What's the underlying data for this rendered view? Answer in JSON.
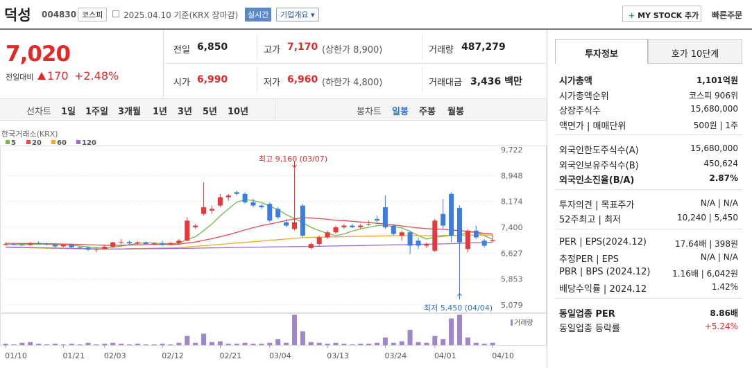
{
  "header": {
    "name": "덕성",
    "code": "004830",
    "market": "코스피",
    "date": "2025.04.10 기준(KRX 장마감)",
    "realtime": "실시간",
    "overview": "기업개요",
    "my_stock": "MY STOCK 추가",
    "quick_order": "빠른주문"
  },
  "price": {
    "current": "7,020",
    "change_label": "전일대비",
    "change": "170",
    "rate": "+2.48%"
  },
  "quotes": [
    {
      "label": "전일",
      "value": "6,850"
    },
    {
      "label": "고가",
      "value": "7,170",
      "note": "(상한가 8,900)"
    },
    {
      "label": "거래량",
      "value": "487,279"
    },
    {
      "label": "시가",
      "value": "6,990"
    },
    {
      "label": "저가",
      "value": "6,960",
      "note": "(하한가 4,800)"
    },
    {
      "label": "거래대금",
      "value": "3,436 백만"
    }
  ],
  "line_tabs": {
    "label": "선차트",
    "items": [
      "1일",
      "1주일",
      "3개월",
      "1년",
      "3년",
      "5년",
      "10년"
    ]
  },
  "candle_tabs": {
    "label": "봉차트",
    "items": [
      "일봉",
      "주봉",
      "월봉"
    ]
  },
  "chart": {
    "type": "candlestick",
    "source": "한국거래소(KRX)",
    "volume_label": "거래량",
    "categories": [
      "01/10",
      null,
      null,
      null,
      null,
      null,
      null,
      "01/21",
      null,
      null,
      null,
      null,
      "02/03",
      null,
      null,
      null,
      null,
      null,
      null,
      "02/12",
      null,
      null,
      null,
      null,
      null,
      null,
      "02/21",
      null,
      null,
      null,
      null,
      null,
      "03/04",
      null,
      null,
      null,
      null,
      null,
      null,
      "03/13",
      null,
      null,
      null,
      null,
      null,
      null,
      "03/24",
      null,
      null,
      null,
      null,
      null,
      "04/01",
      null,
      null,
      null,
      null,
      null,
      null,
      "04/10"
    ],
    "open": [
      6880,
      6900,
      6880,
      6870,
      6930,
      6900,
      6880,
      6830,
      6880,
      6800,
      6790,
      6730,
      6760,
      6820,
      6950,
      6960,
      6920,
      6950,
      6900,
      6920,
      6880,
      6930,
      7000,
      7400,
      7800,
      7900,
      8050,
      8300,
      8450,
      8400,
      8150,
      8050,
      8100,
      7950,
      7550,
      7350,
      8050,
      6780,
      6900,
      7100,
      7250,
      7400,
      7450,
      7400,
      7500,
      7650,
      8000,
      7450,
      7150,
      7250,
      7000,
      6850,
      6700,
      7800,
      8400,
      7980,
      6750,
      7300,
      7000,
      6990
    ],
    "high": [
      6950,
      6930,
      6920,
      6960,
      6980,
      6940,
      6920,
      6900,
      6900,
      6850,
      6830,
      6800,
      6850,
      6960,
      7050,
      7000,
      6980,
      6980,
      6950,
      7000,
      6960,
      7050,
      7700,
      7500,
      8750,
      8050,
      8400,
      8400,
      8500,
      8450,
      8250,
      8100,
      8150,
      8000,
      7650,
      9160,
      8100,
      6950,
      7150,
      7300,
      7450,
      7500,
      7500,
      7500,
      7600,
      7750,
      8350,
      7500,
      7300,
      7300,
      7100,
      6950,
      7650,
      8250,
      8450,
      8050,
      7350,
      7450,
      7050,
      7170
    ],
    "low": [
      6850,
      6860,
      6840,
      6850,
      6880,
      6860,
      6800,
      6800,
      6780,
      6760,
      6700,
      6650,
      6740,
      6800,
      6900,
      6880,
      6880,
      6880,
      6860,
      6850,
      6850,
      6900,
      6980,
      7350,
      7750,
      7800,
      8000,
      8200,
      8350,
      8100,
      8000,
      7950,
      7550,
      7650,
      7400,
      7300,
      7100,
      6740,
      6850,
      7050,
      7200,
      7350,
      7380,
      7350,
      7450,
      7550,
      7350,
      7150,
      7000,
      6600,
      6750,
      6780,
      6650,
      7350,
      6950,
      5450,
      6650,
      7050,
      6800,
      6960
    ],
    "close": [
      6900,
      6880,
      6870,
      6930,
      6900,
      6880,
      6830,
      6880,
      6800,
      6790,
      6730,
      6760,
      6820,
      6950,
      6960,
      6920,
      6950,
      6900,
      6920,
      6880,
      6930,
      7000,
      7600,
      7450,
      8000,
      7950,
      8300,
      8350,
      8400,
      8150,
      8050,
      8000,
      7600,
      7700,
      7450,
      7550,
      7150,
      6900,
      7100,
      7250,
      7400,
      7450,
      7400,
      7450,
      7500,
      7600,
      7400,
      7200,
      7250,
      6850,
      6850,
      6900,
      7600,
      7450,
      7150,
      6950,
      7300,
      7100,
      6850,
      7020
    ],
    "volume": [
      100000,
      50000,
      150000,
      200000,
      100000,
      50000,
      100000,
      50000,
      100000,
      50000,
      150000,
      50000,
      100000,
      150000,
      100000,
      50000,
      100000,
      50000,
      50000,
      100000,
      50000,
      150000,
      600000,
      150000,
      750000,
      200000,
      250000,
      100000,
      100000,
      150000,
      100000,
      100000,
      150000,
      400000,
      150000,
      2000000,
      900000,
      200000,
      150000,
      100000,
      150000,
      100000,
      50000,
      100000,
      100000,
      150000,
      500000,
      150000,
      250000,
      1000000,
      200000,
      150000,
      600000,
      400000,
      1750000,
      2000000,
      500000,
      150000,
      100000,
      150000
    ],
    "ma": [
      {
        "name": "5",
        "color": "#74b843",
        "values": [
          6880,
          6885,
          6885,
          6890,
          6895,
          6895,
          6880,
          6875,
          6860,
          6840,
          6810,
          6790,
          6780,
          6800,
          6840,
          6880,
          6920,
          6935,
          6930,
          6915,
          6910,
          6925,
          7030,
          7120,
          7300,
          7500,
          7740,
          7950,
          8150,
          8230,
          8200,
          8140,
          8030,
          7930,
          7780,
          7660,
          7540,
          7400,
          7300,
          7220,
          7150,
          7200,
          7290,
          7350,
          7400,
          7450,
          7460,
          7420,
          7380,
          7280,
          7150,
          7050,
          7100,
          7130,
          7150,
          7160,
          7260,
          7250,
          7150,
          7040
        ]
      },
      {
        "name": "20",
        "color": "#e8484a",
        "values": [
          6920,
          6920,
          6915,
          6915,
          6915,
          6910,
          6905,
          6900,
          6895,
          6890,
          6880,
          6870,
          6865,
          6860,
          6865,
          6870,
          6875,
          6880,
          6885,
          6885,
          6890,
          6895,
          6930,
          6960,
          7010,
          7060,
          7120,
          7180,
          7250,
          7320,
          7390,
          7450,
          7500,
          7550,
          7600,
          7650,
          7690,
          7680,
          7660,
          7640,
          7610,
          7600,
          7580,
          7560,
          7540,
          7520,
          7500,
          7470,
          7440,
          7410,
          7380,
          7360,
          7350,
          7340,
          7320,
          7300,
          7280,
          7250,
          7220,
          7200
        ]
      },
      {
        "name": "60",
        "color": "#f5a623",
        "values": [
          6800,
          6795,
          6790,
          6785,
          6780,
          6775,
          6770,
          6765,
          6760,
          6755,
          6750,
          6745,
          6745,
          6750,
          6755,
          6760,
          6765,
          6770,
          6775,
          6780,
          6785,
          6790,
          6810,
          6830,
          6850,
          6870,
          6890,
          6910,
          6930,
          6950,
          6970,
          6990,
          7010,
          7030,
          7050,
          7070,
          7090,
          7100,
          7105,
          7110,
          7115,
          7120,
          7125,
          7130,
          7135,
          7140,
          7145,
          7150,
          7150,
          7150,
          7150,
          7150,
          7155,
          7160,
          7160,
          7160,
          7165,
          7165,
          7170,
          7170
        ]
      },
      {
        "name": "120",
        "color": "#9b6bd6",
        "values": [
          6810,
          6805,
          6800,
          6795,
          6790,
          6785,
          6780,
          6775,
          6770,
          6765,
          6760,
          6755,
          6750,
          6750,
          6750,
          6752,
          6755,
          6757,
          6760,
          6762,
          6765,
          6768,
          6772,
          6776,
          6780,
          6784,
          6788,
          6792,
          6796,
          6800,
          6804,
          6808,
          6812,
          6816,
          6820,
          6824,
          6828,
          6830,
          6834,
          6838,
          6842,
          6846,
          6850,
          6855,
          6860,
          6865,
          6870,
          6875,
          6880,
          6885,
          6890,
          6895,
          6900,
          6905,
          6910,
          6920,
          6930,
          6940,
          6945,
          6950
        ]
      }
    ],
    "ylim": [
      4870,
      9950
    ],
    "yticks": [
      {
        "value": 9722,
        "label": "9,722"
      },
      {
        "value": 8948,
        "label": "8,948"
      },
      {
        "value": 8174,
        "label": "8,174"
      },
      {
        "value": 7400,
        "label": "7,400"
      },
      {
        "value": 6627,
        "label": "6,627"
      },
      {
        "value": 5853,
        "label": "5,853"
      },
      {
        "value": 5079,
        "label": "5,079"
      }
    ],
    "grid": true,
    "annotations": [
      {
        "text": "최고 9,160 (03/07)",
        "index": 35,
        "value": 9160
      },
      {
        "text": "최저 5,450 (04/04)",
        "index": 55,
        "value": 5450
      }
    ]
  },
  "info_tabs": [
    "투자정보",
    "호가 10단계"
  ],
  "info_groups": [
    [
      {
        "label": "시가총액",
        "value": "1,101억원"
      },
      {
        "label": "시가총액순위",
        "value": "코스피 906위"
      },
      {
        "label": "상장주식수",
        "value": "15,680,000"
      },
      {
        "label": "액면가 | 매매단위",
        "value": "500원 | 1주"
      }
    ],
    [
      {
        "label": "외국인한도주식수(A)",
        "value": "15,680,000"
      },
      {
        "label": "외국인보유주식수(B)",
        "value": "450,624"
      },
      {
        "label": "외국인소진율(B/A)",
        "value": "2.87%"
      }
    ],
    [
      {
        "label": "투자의견 | 목표주가",
        "value": "N/A | N/A"
      },
      {
        "label": "52주최고 | 최저",
        "value": "10,240 | 5,450"
      }
    ],
    [
      {
        "label": "PER | EPS(2024.12)",
        "value": "17.64배 | 398원"
      },
      {
        "label": "추정PER | EPS",
        "value": "N/A | N/A"
      },
      {
        "label": "PBR | BPS (2024.12)",
        "value": "1.16배 | 6,042원"
      },
      {
        "label": "배당수익률 | 2024.12",
        "value": "1.42%"
      }
    ],
    [
      {
        "label": "동일업종 PER",
        "value": "8.86배"
      },
      {
        "label": "동일업종 등락률",
        "value": "+5.24%"
      }
    ]
  ]
}
